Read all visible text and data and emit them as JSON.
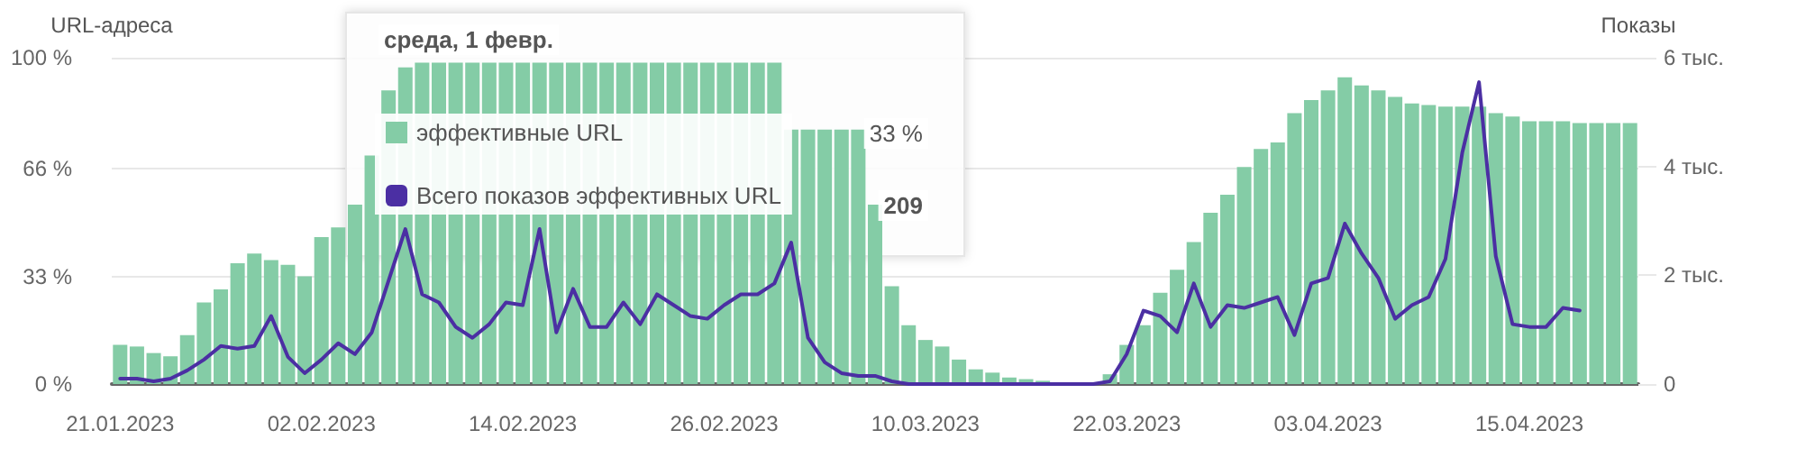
{
  "chart_data": {
    "type": "bar",
    "ylabel": "URL-адреса",
    "y2label": "Показы",
    "categories": [
      "21.01.2023",
      null,
      null,
      null,
      null,
      null,
      null,
      null,
      null,
      null,
      null,
      null,
      "02.02.2023",
      null,
      null,
      null,
      null,
      null,
      null,
      null,
      null,
      null,
      null,
      null,
      "14.02.2023",
      null,
      null,
      null,
      null,
      null,
      null,
      null,
      null,
      null,
      null,
      null,
      "26.02.2023",
      null,
      null,
      null,
      null,
      null,
      null,
      null,
      null,
      null,
      null,
      null,
      "10.03.2023",
      null,
      null,
      null,
      null,
      null,
      null,
      null,
      null,
      null,
      null,
      null,
      "22.03.2023",
      null,
      null,
      null,
      null,
      null,
      null,
      null,
      null,
      null,
      null,
      null,
      "03.04.2023",
      null,
      null,
      null,
      null,
      null,
      null,
      null,
      null,
      null,
      null,
      null,
      "15.04.2023",
      null,
      null,
      null,
      null,
      null,
      null
    ],
    "series": [
      {
        "name": "эффективные URL",
        "color": "#84cca6",
        "values": [
          12,
          11.5,
          9.5,
          8.5,
          15,
          25,
          29,
          37,
          40,
          38,
          36.5,
          33,
          45,
          48,
          55,
          70,
          90,
          97,
          98.5,
          98.5,
          98.5,
          98.5,
          98.5,
          98.5,
          98.5,
          98.5,
          98.5,
          98.5,
          98.5,
          98.5,
          98.5,
          98.5,
          98.5,
          98.5,
          98.5,
          98.5,
          98.5,
          98.5,
          98.5,
          98.5,
          78,
          78,
          78,
          78,
          78,
          55,
          30,
          18,
          13.5,
          11.5,
          7.5,
          4.5,
          3.5,
          2,
          1.5,
          1,
          0.5,
          0.5,
          0.5,
          3,
          12,
          18,
          28,
          35,
          43.5,
          52.5,
          58,
          66.5,
          72,
          74,
          83,
          87,
          90,
          94,
          91.5,
          90,
          88,
          86,
          85.5,
          85,
          85,
          85,
          83,
          82,
          80.5,
          80.5,
          80.5,
          80,
          80,
          80,
          80
        ]
      },
      {
        "name": "Всего показов эффективных URL",
        "type": "line",
        "axis": "y2",
        "color": "#4b2fa3",
        "values": [
          0.1,
          0.1,
          0.05,
          0.1,
          0.25,
          0.45,
          0.7,
          0.65,
          0.7,
          1.25,
          0.5,
          0.2,
          0.45,
          0.75,
          0.55,
          0.95,
          1.9,
          2.85,
          1.65,
          1.5,
          1.05,
          0.85,
          1.1,
          1.5,
          1.45,
          2.85,
          0.95,
          1.75,
          1.05,
          1.05,
          1.5,
          1.1,
          1.65,
          1.45,
          1.25,
          1.2,
          1.45,
          1.65,
          1.65,
          1.85,
          2.6,
          0.85,
          0.4,
          0.2,
          0.15,
          0.15,
          0.05,
          0,
          0,
          0,
          0,
          0,
          0,
          0,
          0,
          0,
          0,
          0,
          0,
          0.05,
          0.55,
          1.35,
          1.25,
          0.95,
          1.85,
          1.05,
          1.45,
          1.4,
          1.5,
          1.6,
          0.9,
          1.85,
          1.95,
          2.95,
          2.4,
          1.95,
          1.2,
          1.45,
          1.6,
          2.3,
          4.25,
          5.55,
          2.35,
          1.1,
          1.05,
          1.05,
          1.4,
          1.35,
          null,
          null,
          null
        ]
      }
    ],
    "ylim": [
      0,
      100
    ],
    "yticks": [
      {
        "value": 0,
        "label": "0 %"
      },
      {
        "value": 33,
        "label": "33 %"
      },
      {
        "value": 66,
        "label": "66 %"
      },
      {
        "value": 100,
        "label": "100 %"
      }
    ],
    "y2lim": [
      0,
      6
    ],
    "y2ticks": [
      0,
      {
        "value": 2,
        "label": "2 тыс."
      },
      {
        "value": 4,
        "label": "4 тыс."
      },
      {
        "value": 6,
        "label": "6 тыс."
      }
    ],
    "grid": "y",
    "legend": "top left",
    "marker": "none",
    "line_style": "solid",
    "annotations": [
      "среда, 1 февр.",
      "33 %",
      "209"
    ]
  }
}
